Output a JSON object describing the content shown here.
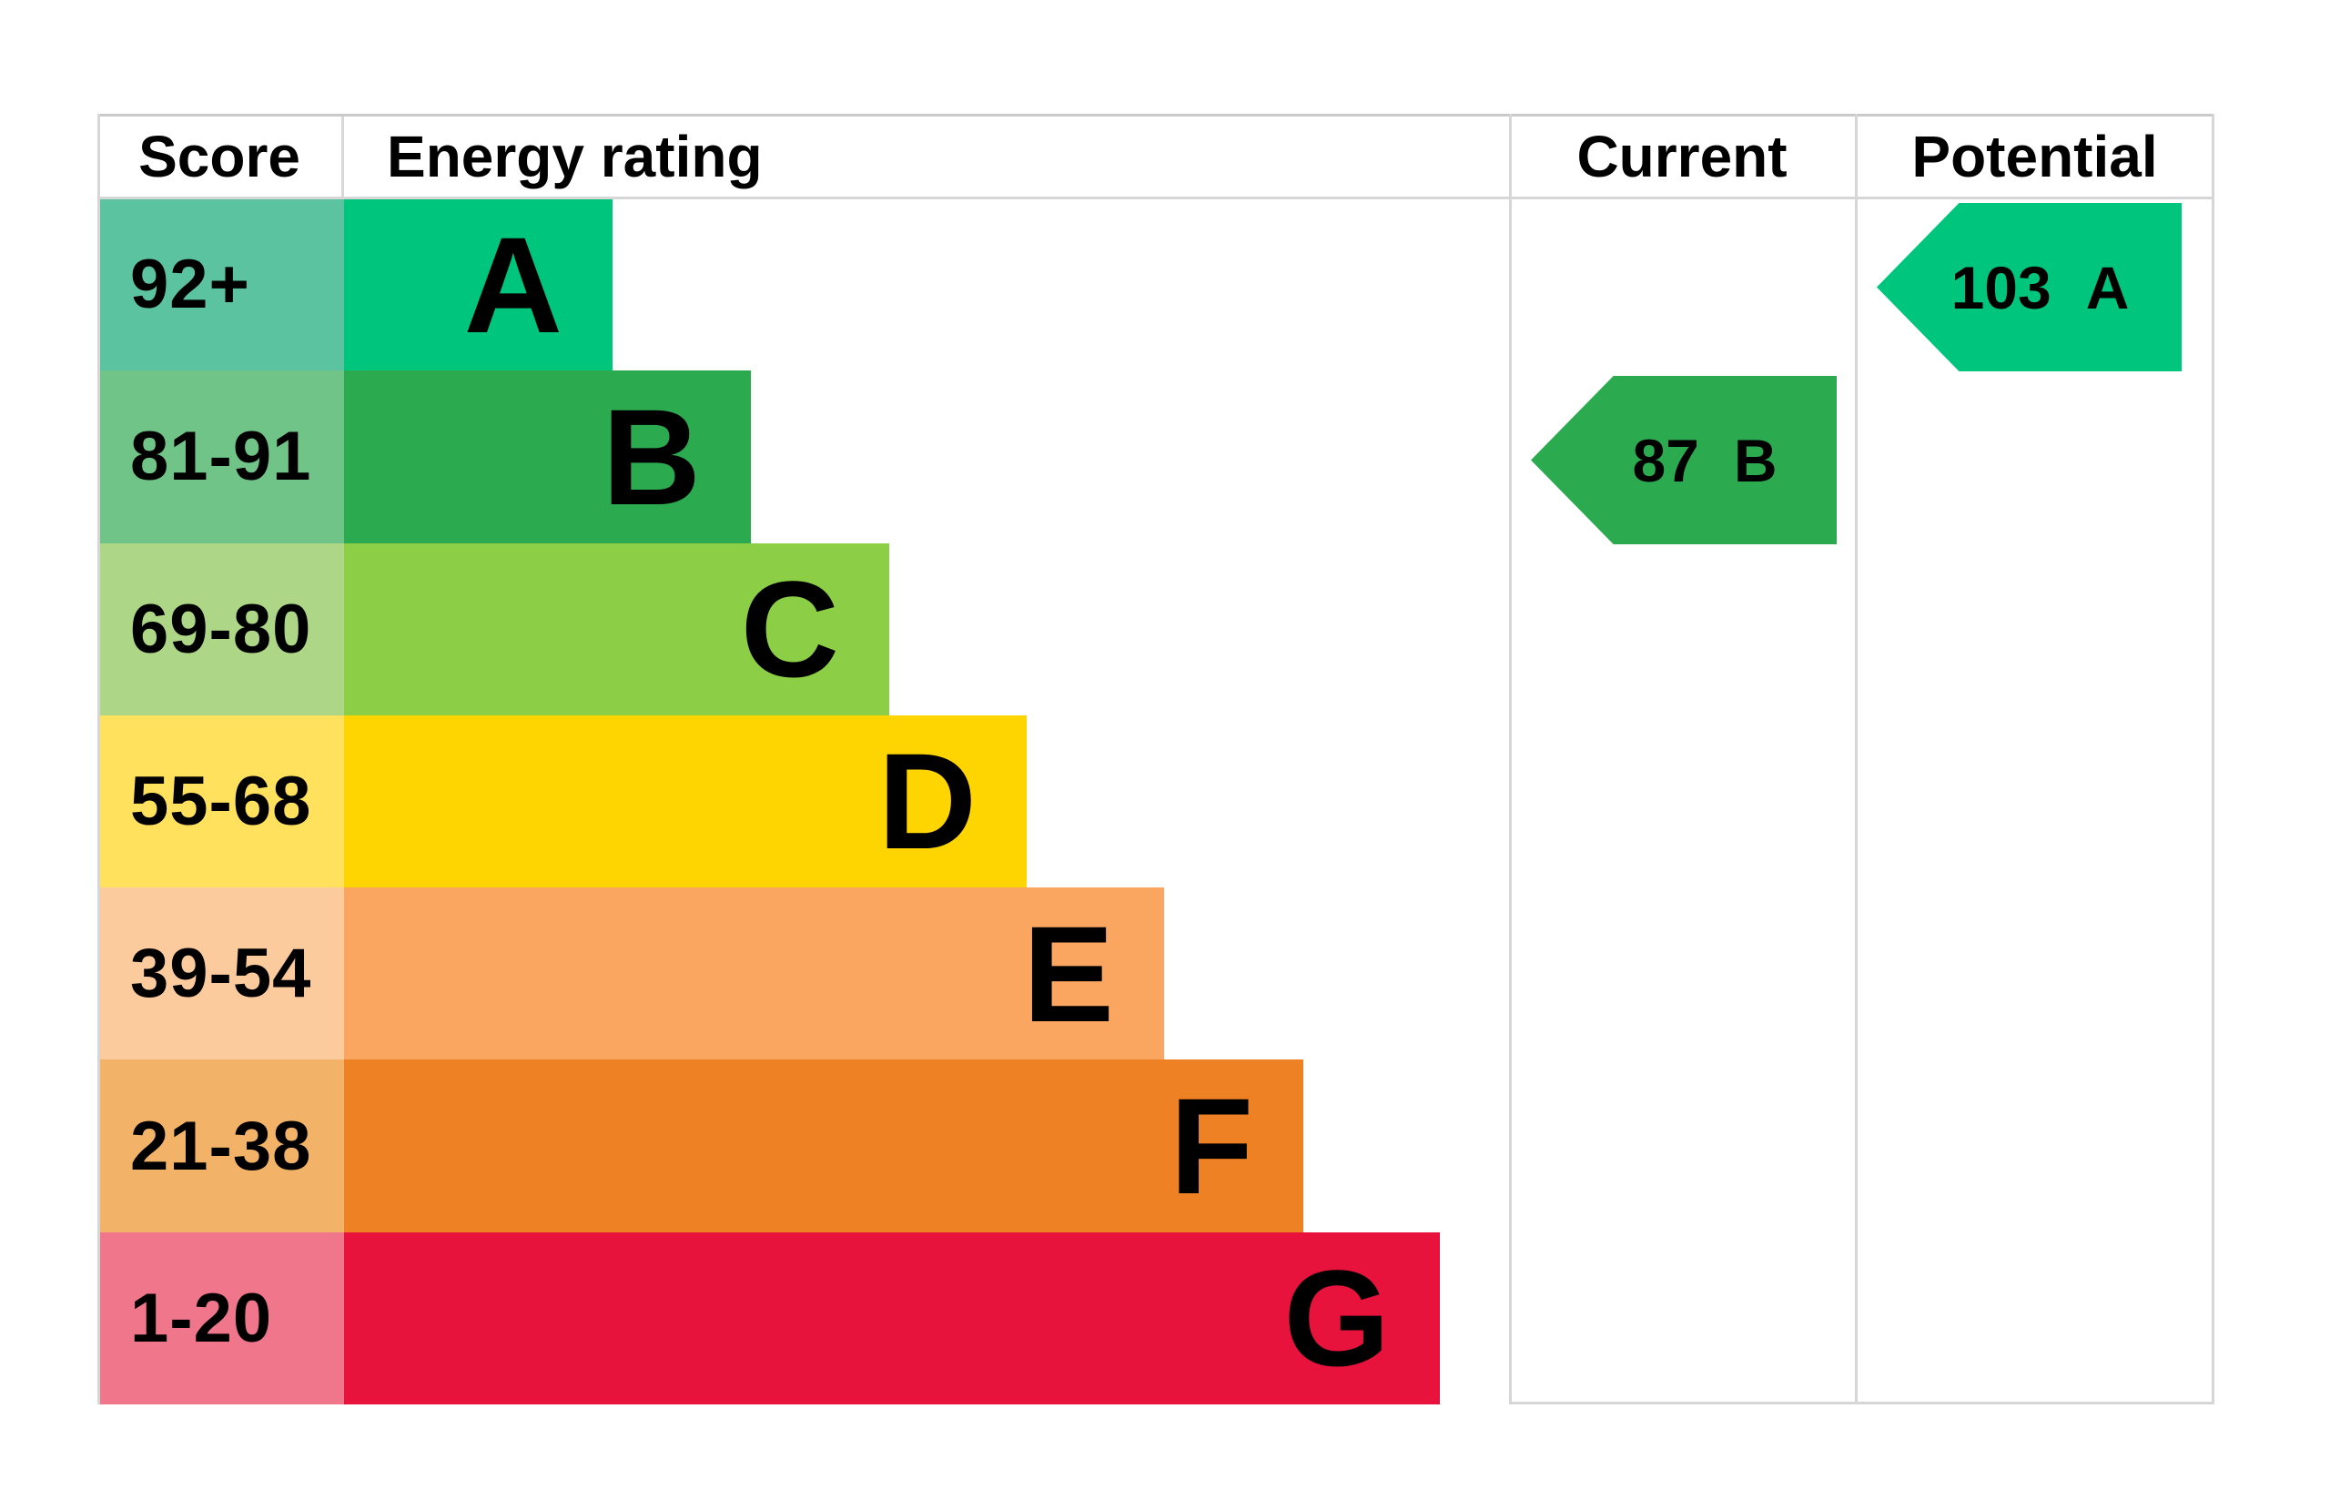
{
  "chart_data": {
    "type": "bar",
    "orientation": "horizontal",
    "title": "",
    "columns": [
      "Score",
      "Energy rating",
      "Current",
      "Potential"
    ],
    "grid_color": "#d6d6d6",
    "bands": [
      {
        "rating": "A",
        "score_range": "92+",
        "bar_color": "#00c57d",
        "score_color": "#5cc3a0",
        "bar_width_px": "295px"
      },
      {
        "rating": "B",
        "score_range": "81-91",
        "bar_color": "#2baa50",
        "score_color": "#70c487",
        "bar_width_px": "447px"
      },
      {
        "rating": "C",
        "score_range": "69-80",
        "bar_color": "#8cce45",
        "score_color": "#aed687",
        "bar_width_px": "599px"
      },
      {
        "rating": "D",
        "score_range": "55-68",
        "bar_color": "#ffd500",
        "score_color": "#ffe15e",
        "bar_width_px": "750px"
      },
      {
        "rating": "E",
        "score_range": "39-54",
        "bar_color": "#faa660",
        "score_color": "#fbca9d",
        "bar_width_px": "901px"
      },
      {
        "rating": "F",
        "score_range": "21-38",
        "bar_color": "#ed8123",
        "score_color": "#f2b268",
        "bar_width_px": "1054px"
      },
      {
        "rating": "G",
        "score_range": "1-20",
        "bar_color": "#e7133d",
        "score_color": "#f0768c",
        "bar_width_px": "1204px"
      }
    ],
    "current": {
      "label": "Current",
      "score": "87",
      "rating": "B",
      "band": "B",
      "color": "#2baa50"
    },
    "potential": {
      "label": "Potential",
      "score": "103",
      "rating": "A",
      "band": "A",
      "color": "#00c57d"
    }
  }
}
